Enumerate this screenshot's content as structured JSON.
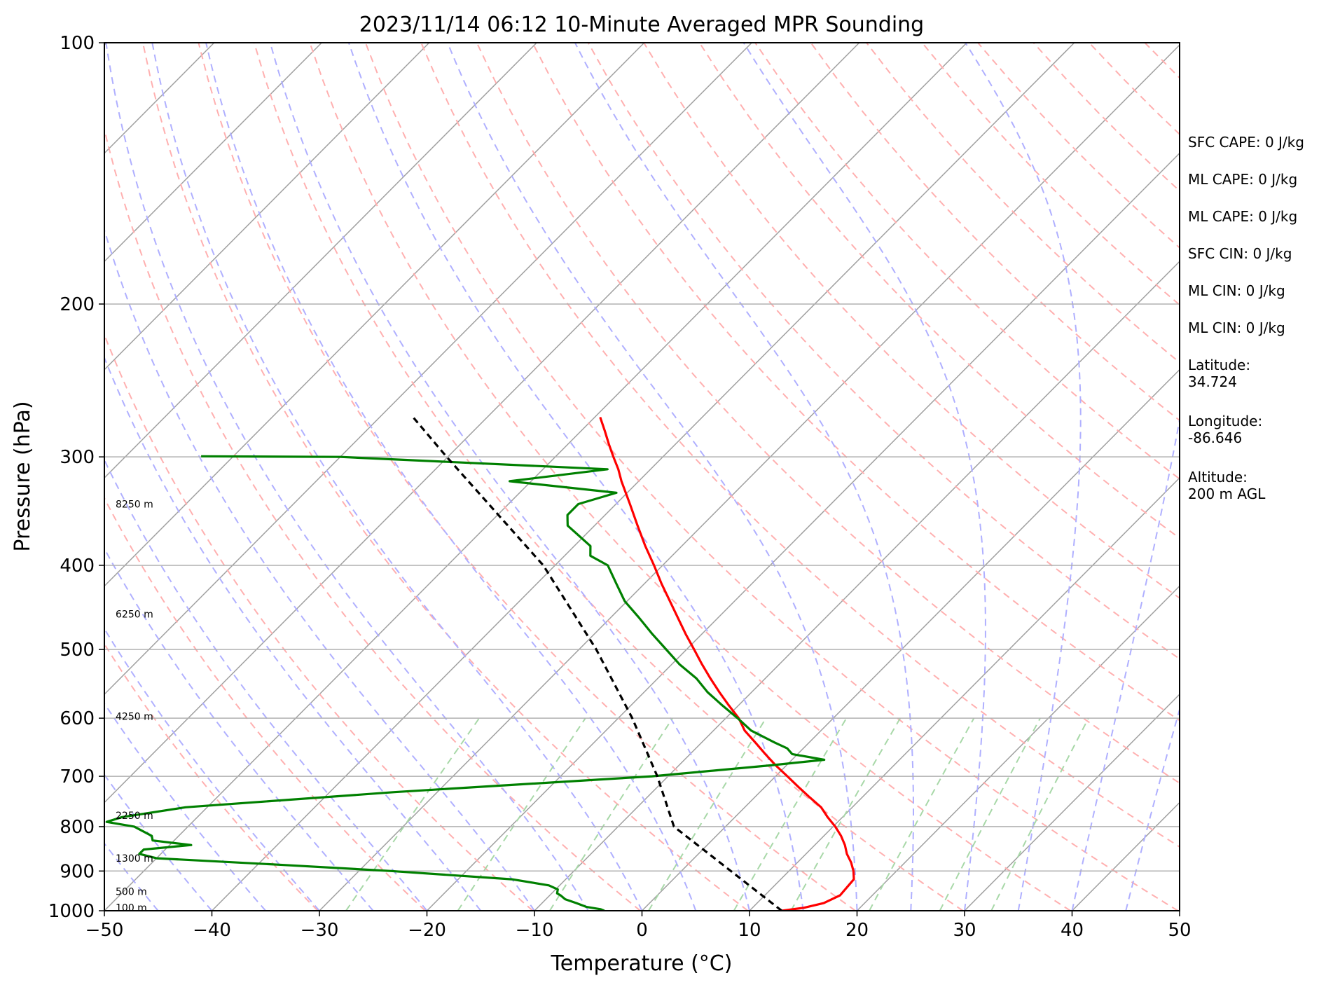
{
  "chart_data": {
    "type": "line",
    "title": "2023/11/14 06:12 10-Minute Averaged MPR Sounding",
    "xlabel": "Temperature (°C)",
    "ylabel": "Pressure (hPa)",
    "xlim": [
      -50,
      50
    ],
    "ylim": [
      1000,
      100
    ],
    "y_scale": "log",
    "x_skewed": true,
    "grid": true,
    "x_ticks": [
      "−50",
      "−40",
      "−30",
      "−20",
      "−10",
      "0",
      "10",
      "20",
      "30",
      "40",
      "50"
    ],
    "y_ticks": [
      "100",
      "200",
      "300",
      "400",
      "500",
      "600",
      "700",
      "800",
      "900",
      "1000"
    ],
    "y_tick_values": [
      100,
      200,
      300,
      400,
      500,
      600,
      700,
      800,
      900,
      1000
    ],
    "height_labels": [
      {
        "text": "8250 m",
        "pressure": 340
      },
      {
        "text": "6250 m",
        "pressure": 455
      },
      {
        "text": "4250 m",
        "pressure": 597
      },
      {
        "text": "2250 m",
        "pressure": 777
      },
      {
        "text": "1300 m",
        "pressure": 870
      },
      {
        "text": "500 m",
        "pressure": 950
      },
      {
        "text": "100 m",
        "pressure": 992
      }
    ],
    "series": [
      {
        "color": "#ff0000",
        "pressure": [
          1000,
          992,
          980,
          960,
          940,
          920,
          900,
          880,
          860,
          840,
          820,
          800,
          780,
          760,
          740,
          720,
          700,
          680,
          660,
          640,
          620,
          600,
          580,
          560,
          540,
          520,
          500,
          480,
          460,
          440,
          420,
          400,
          380,
          360,
          340,
          320,
          310,
          300,
          290,
          280,
          270
        ],
        "values": [
          13.0,
          14.8,
          16.2,
          17.0,
          16.9,
          16.8,
          16.0,
          15.0,
          13.8,
          12.8,
          11.6,
          10.2,
          8.6,
          7.1,
          5.1,
          3.1,
          1.1,
          -1.0,
          -3.0,
          -5.0,
          -7.1,
          -8.8,
          -10.9,
          -13.0,
          -15.1,
          -17.2,
          -19.3,
          -21.5,
          -23.7,
          -26.0,
          -28.4,
          -30.8,
          -33.4,
          -36.0,
          -38.7,
          -41.6,
          -43.0,
          -44.6,
          -46.2,
          -47.8,
          -49.5
        ]
      },
      {
        "color": "#008000",
        "pressure": [
          1000,
          996,
          990,
          980,
          970,
          960,
          955,
          945,
          935,
          920,
          900,
          885,
          870,
          860,
          850,
          840,
          830,
          820,
          800,
          790,
          780,
          760,
          730,
          700,
          680,
          670,
          660,
          650,
          640,
          620,
          600,
          580,
          560,
          540,
          520,
          500,
          480,
          460,
          440,
          420,
          400,
          390,
          380,
          360,
          355,
          350,
          340,
          330,
          320,
          310,
          300,
          299.5
        ],
        "values": [
          -3.5,
          -4.0,
          -5.5,
          -6.8,
          -8.2,
          -9.0,
          -9.5,
          -9.8,
          -11.0,
          -15.0,
          -27.0,
          -38.0,
          -50.0,
          -52.0,
          -52.0,
          -48.0,
          -52.0,
          -52.5,
          -55.0,
          -58.0,
          -57.0,
          -52.0,
          -34.0,
          -11.5,
          -1.5,
          3.0,
          -0.5,
          -1.5,
          -3.2,
          -6.5,
          -8.9,
          -11.5,
          -14.1,
          -16.4,
          -19.3,
          -21.9,
          -24.6,
          -27.3,
          -30.2,
          -32.6,
          -35.1,
          -37.6,
          -38.5,
          -42.5,
          -43.0,
          -43.5,
          -43.5,
          -41.0,
          -52.0,
          -44.0,
          -70.0,
          -83.0
        ]
      },
      {
        "color": "#000000",
        "pressure": [
          1000,
          800,
          700,
          600,
          500,
          400,
          300,
          270
        ],
        "values": [
          13.0,
          -4.8,
          -11.0,
          -18.7,
          -28.4,
          -41.1,
          -60.1,
          -66.9
        ]
      }
    ],
    "info_panel": [
      "SFC CAPE: 0 J/kg",
      "ML CAPE: 0 J/kg",
      "ML CAPE: 0 J/kg",
      "SFC CIN: 0 J/kg",
      "ML CIN: 0 J/kg",
      "ML CIN: 0 J/kg",
      "Latitude:\n34.724",
      "Longitude:\n-86.646",
      "Altitude:\n200 m AGL"
    ],
    "background_lines": {
      "isotherm_color": "#a0a0a0",
      "dry_adiabat_color": "#ffb0b0",
      "moist_adiabat_color": "#b0b0ff",
      "mixing_ratio_color": "#a8d8a8"
    }
  }
}
